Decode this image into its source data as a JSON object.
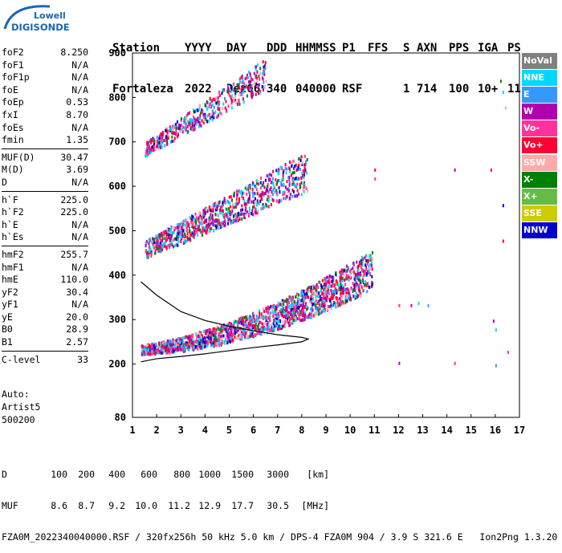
{
  "logo": {
    "line1": "Lowell",
    "line2": "DIGISONDE",
    "color": "#1a66b3"
  },
  "header": {
    "labels": [
      "Station",
      "YYYY",
      "DAY",
      "DDD",
      "HHMMSS",
      "P1",
      "FFS",
      "S",
      "AXN",
      "PPS",
      "IGA",
      "PS"
    ],
    "values": [
      "Fortaleza",
      "2022",
      "Dez06",
      "340",
      "040000",
      "RSF",
      "",
      "1",
      "714",
      "100",
      "10+",
      "11"
    ]
  },
  "params": {
    "group1": [
      {
        "name": "foF2",
        "value": "8.250"
      },
      {
        "name": "foF1",
        "value": "N/A"
      },
      {
        "name": "foF1p",
        "value": "N/A"
      },
      {
        "name": "foE",
        "value": "N/A"
      },
      {
        "name": "foEp",
        "value": "0.53"
      },
      {
        "name": "fxI",
        "value": "8.70"
      },
      {
        "name": "foEs",
        "value": "N/A"
      },
      {
        "name": "fmin",
        "value": "1.35"
      }
    ],
    "group2": [
      {
        "name": "MUF(D)",
        "value": "30.47"
      },
      {
        "name": "M(D)",
        "value": "3.69"
      },
      {
        "name": "D",
        "value": "N/A"
      }
    ],
    "group3": [
      {
        "name": "h`F",
        "value": "225.0"
      },
      {
        "name": "h`F2",
        "value": "225.0"
      },
      {
        "name": "h`E",
        "value": "N/A"
      },
      {
        "name": "h`Es",
        "value": "N/A"
      }
    ],
    "group4": [
      {
        "name": "hmF2",
        "value": "255.7"
      },
      {
        "name": "hmF1",
        "value": "N/A"
      },
      {
        "name": "hmE",
        "value": "110.0"
      },
      {
        "name": "yF2",
        "value": "30.4"
      },
      {
        "name": "yF1",
        "value": "N/A"
      },
      {
        "name": "yE",
        "value": "20.0"
      },
      {
        "name": "B0",
        "value": "28.9"
      },
      {
        "name": "B1",
        "value": "2.57"
      }
    ],
    "group5": [
      {
        "name": "C-level",
        "value": "33"
      }
    ]
  },
  "autoscale": {
    "line1": "Auto:",
    "line2": "Artist5",
    "line3": "500200"
  },
  "legend": [
    {
      "label": "NoVal",
      "color": "#808080"
    },
    {
      "label": "NNE",
      "color": "#00d8ff"
    },
    {
      "label": "E",
      "color": "#3399ff"
    },
    {
      "label": "W",
      "color": "#b000b0"
    },
    {
      "label": "Vo-",
      "color": "#ff3399"
    },
    {
      "label": "Vo+",
      "color": "#ff0033"
    },
    {
      "label": "SSW",
      "color": "#ffaaaa"
    },
    {
      "label": "X-",
      "color": "#008000"
    },
    {
      "label": "X+",
      "color": "#66bb44"
    },
    {
      "label": "SSE",
      "color": "#cccc00"
    },
    {
      "label": "NNW",
      "color": "#0000cc"
    }
  ],
  "footer": {
    "d_label": "D",
    "d_values": [
      "100",
      "200",
      "400",
      "600",
      "800",
      "1000",
      "1500",
      "3000",
      "[km]"
    ],
    "muf_label": "MUF",
    "muf_values": [
      "8.6",
      "8.7",
      "9.2",
      "10.0",
      "11.2",
      "12.9",
      "17.7",
      "30.5",
      "[MHz]"
    ],
    "info": "FZA0M_2022340040000.RSF / 320fx256h 50 kHz 5.0 km / DPS-4 FZA0M 904 / 3.9 S 321.6 E   Ion2Png 1.3.20"
  },
  "chart_data": {
    "type": "scatter",
    "title": "",
    "xlabel": "",
    "ylabel": "",
    "xlim": [
      1,
      17
    ],
    "ylim": [
      80,
      900
    ],
    "x_ticks": [
      "1",
      "2",
      "3",
      "4",
      "5",
      "6",
      "7",
      "8",
      "9",
      "10",
      "11",
      "12",
      "13",
      "14",
      "15",
      "16",
      "17"
    ],
    "y_ticks": [
      "80",
      "200",
      "300",
      "400",
      "500",
      "600",
      "700",
      "800",
      "900"
    ],
    "frequency_unit": "MHz",
    "height_unit": "km",
    "traces": [
      {
        "name": "F-trace (1st hop)",
        "f_range": [
          1.35,
          10.9
        ],
        "h_start": 225,
        "h_end": 370
      },
      {
        "name": "F-trace (2nd hop)",
        "f_range": [
          1.5,
          8.2
        ],
        "h_start": 450,
        "h_end": 600
      },
      {
        "name": "F-trace (3rd hop)",
        "f_range": [
          1.5,
          6.5
        ],
        "h_start": 670,
        "h_end": 820
      }
    ],
    "profile_curve": [
      [
        1.35,
        205
      ],
      [
        2,
        212
      ],
      [
        3,
        217
      ],
      [
        4,
        223
      ],
      [
        5,
        230
      ],
      [
        6,
        237
      ],
      [
        7,
        243
      ],
      [
        8,
        250
      ],
      [
        8.25,
        256
      ]
    ],
    "muf_curve": [
      [
        1.35,
        385
      ],
      [
        2,
        355
      ],
      [
        3,
        318
      ],
      [
        4,
        298
      ],
      [
        5,
        285
      ],
      [
        6,
        275
      ],
      [
        7,
        266
      ],
      [
        8,
        260
      ],
      [
        8.3,
        256
      ]
    ]
  }
}
